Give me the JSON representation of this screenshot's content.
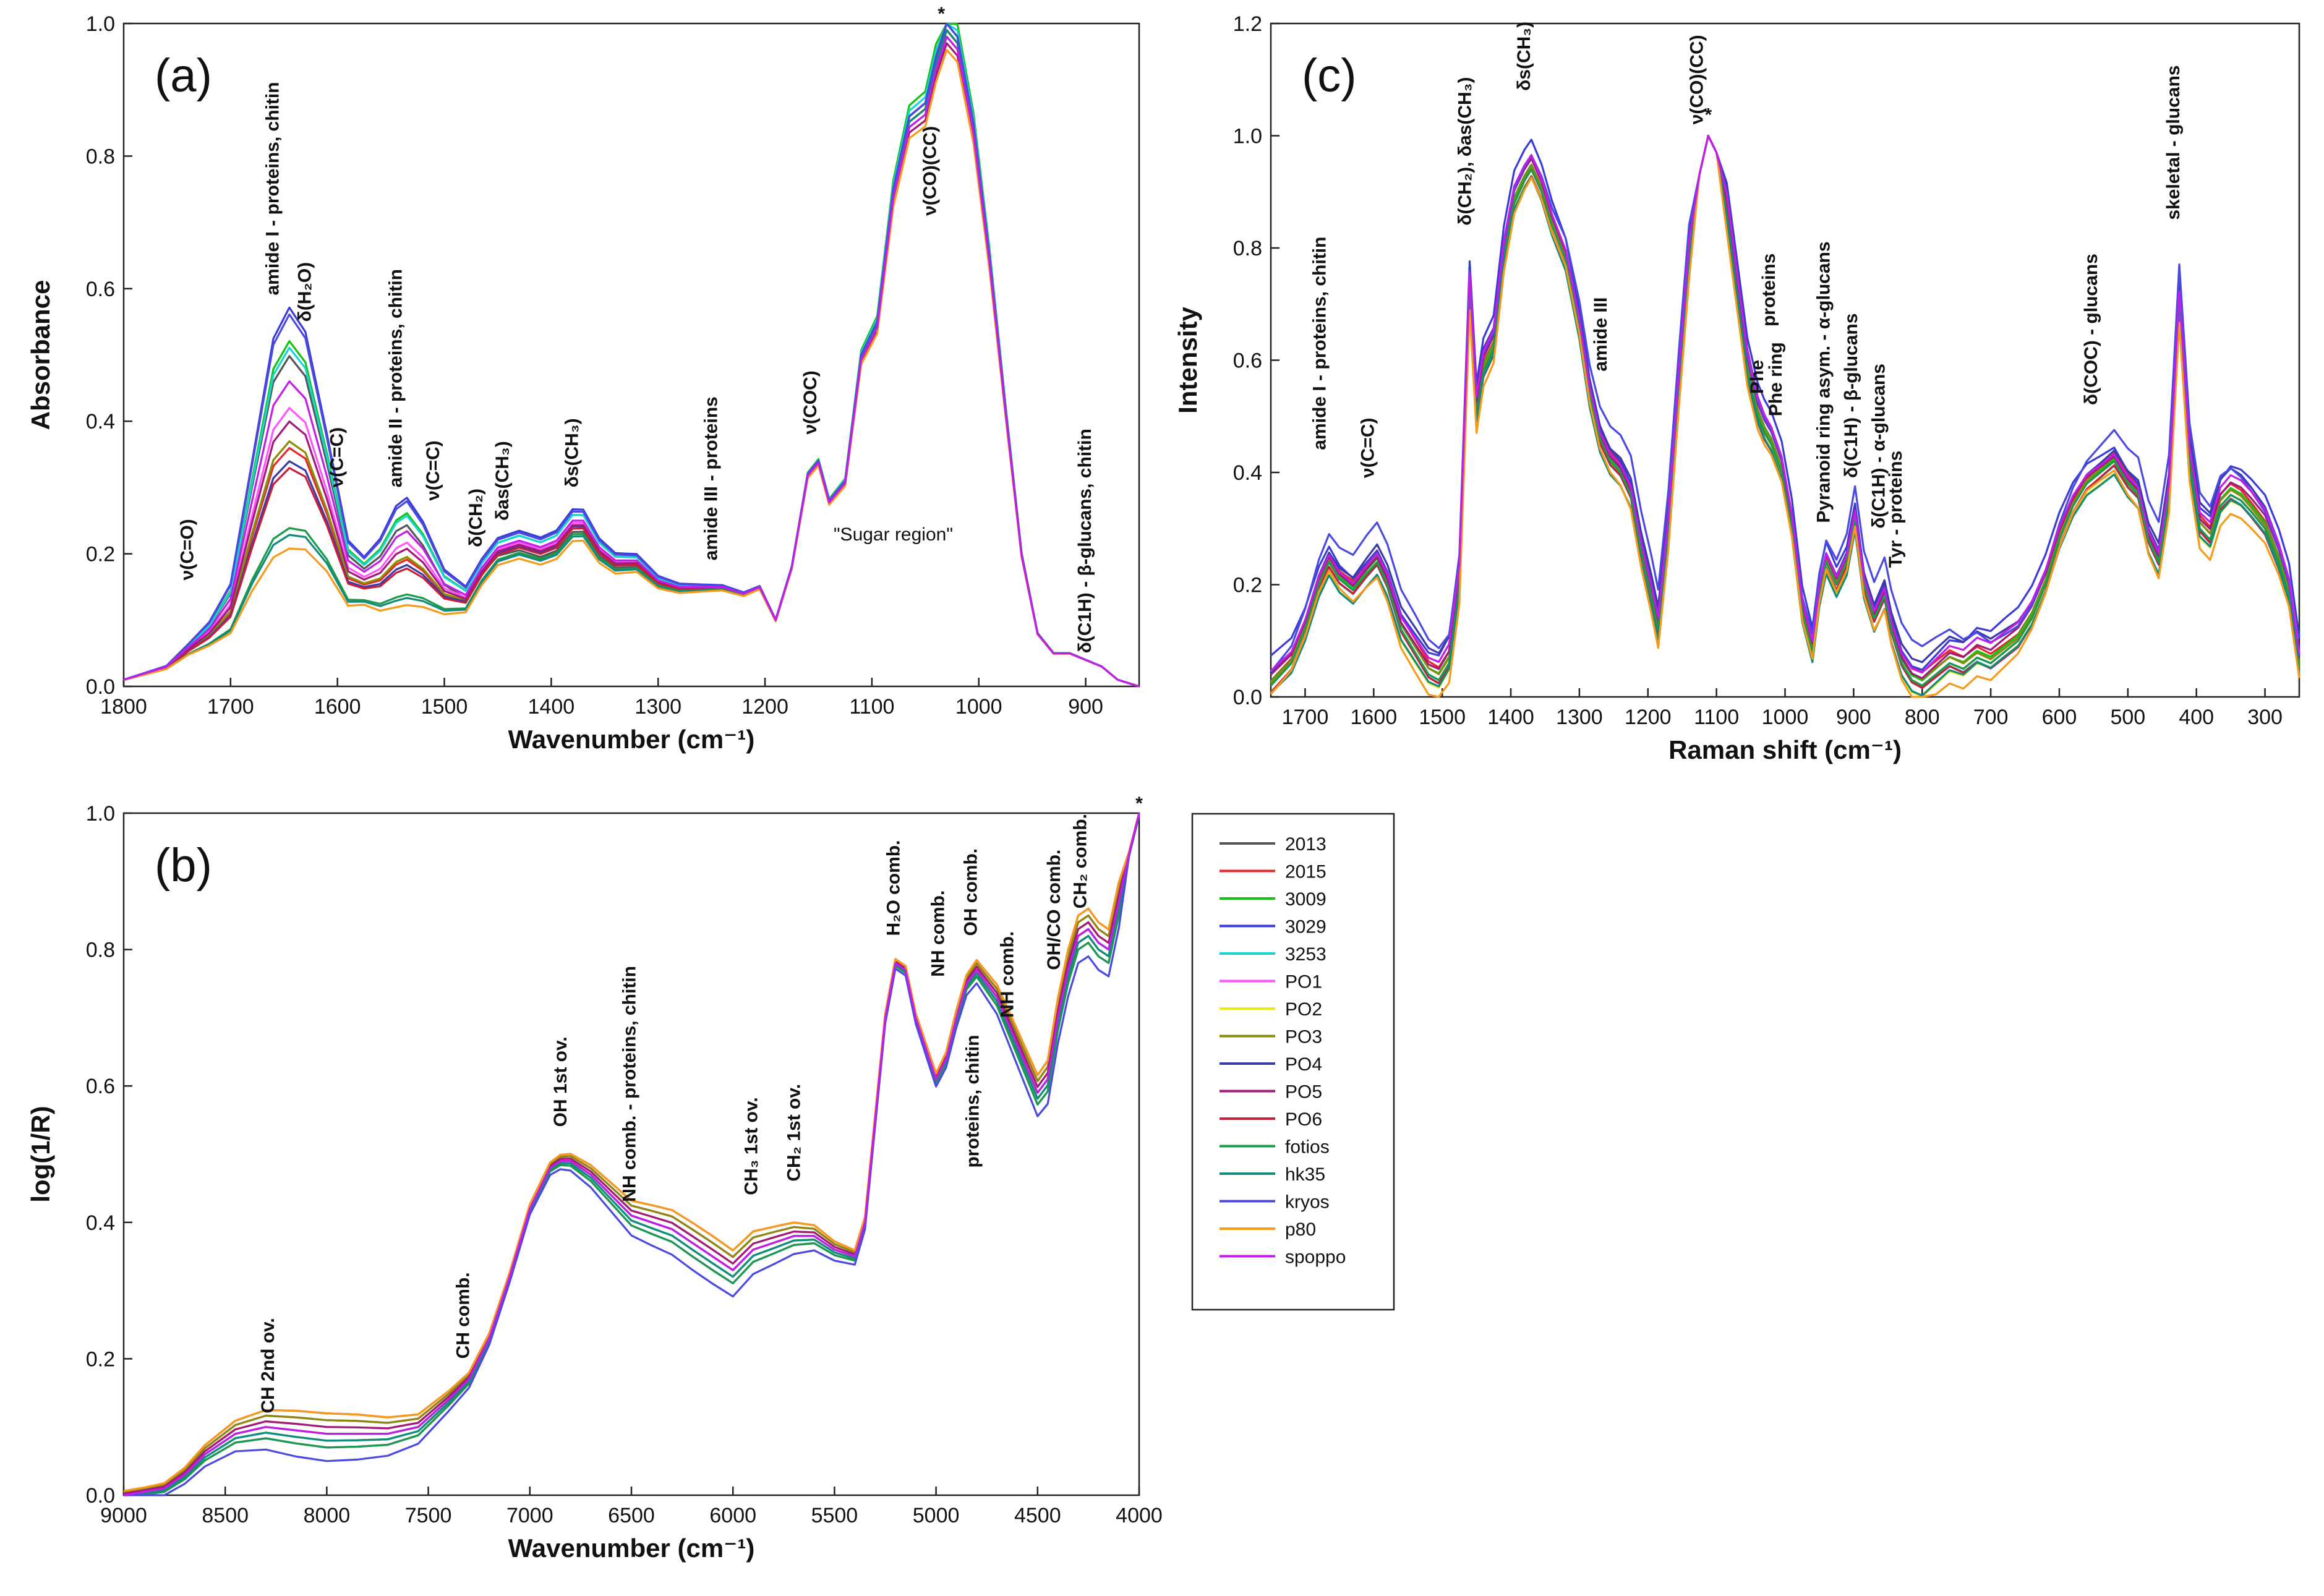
{
  "legend": {
    "items": [
      {
        "name": "2013",
        "color": "#555555"
      },
      {
        "name": "2015",
        "color": "#e8262b"
      },
      {
        "name": "3009",
        "color": "#11c411"
      },
      {
        "name": "3029",
        "color": "#3b3bd8"
      },
      {
        "name": "3253",
        "color": "#14d6d6"
      },
      {
        "name": "PO1",
        "color": "#ff55ff"
      },
      {
        "name": "PO2",
        "color": "#e8e81a"
      },
      {
        "name": "PO3",
        "color": "#8a8a10"
      },
      {
        "name": "PO4",
        "color": "#3a3aa8"
      },
      {
        "name": "PO5",
        "color": "#a01a7a"
      },
      {
        "name": "PO6",
        "color": "#c81e3c"
      },
      {
        "name": "fotios",
        "color": "#1a9a4a"
      },
      {
        "name": "hk35",
        "color": "#138a7a"
      },
      {
        "name": "kryos",
        "color": "#4a4ae0"
      },
      {
        "name": "p80",
        "color": "#f59a1a"
      },
      {
        "name": "spoppo",
        "color": "#c21ee8"
      }
    ]
  },
  "chart_data": [
    {
      "panel": "(a)",
      "type": "line",
      "xlabel": "Wavenumber (cm⁻¹)",
      "ylabel": "Absorbance",
      "xlim": [
        1800,
        850
      ],
      "ylim": [
        0,
        1.0
      ],
      "xticks": [
        "1800",
        "1700",
        "1600",
        "1500",
        "1400",
        "1300",
        "1200",
        "1100",
        "1000",
        "900"
      ],
      "yticks": [
        "0.0",
        "0.2",
        "0.4",
        "0.6",
        "0.8",
        "1.0"
      ],
      "annotations": [
        {
          "text": "ν(C=O)",
          "x": 1735,
          "y": 0.16
        },
        {
          "text": "amide I - proteins, chitin",
          "x": 1655,
          "y": 0.59
        },
        {
          "text": "δ(H₂O)",
          "x": 1625,
          "y": 0.55
        },
        {
          "text": "ν(C=C)",
          "x": 1595,
          "y": 0.3
        },
        {
          "text": "amide II - proteins, chitin",
          "x": 1540,
          "y": 0.3
        },
        {
          "text": "ν(C=C)",
          "x": 1505,
          "y": 0.28
        },
        {
          "text": "δ(CH₂)",
          "x": 1465,
          "y": 0.21
        },
        {
          "text": "δas(CH₃)",
          "x": 1440,
          "y": 0.25
        },
        {
          "text": "δs(CH₃)",
          "x": 1375,
          "y": 0.3
        },
        {
          "text": "amide III - proteins",
          "x": 1245,
          "y": 0.19
        },
        {
          "text": "ν(COC)",
          "x": 1152,
          "y": 0.38
        },
        {
          "text": "\"Sugar region\"",
          "x": 1080,
          "y": 0.22
        },
        {
          "text": "ν(CO)(CC)",
          "x": 1040,
          "y": 0.71
        },
        {
          "text": "*",
          "x": 1035,
          "y": 1.0
        },
        {
          "text": "δ(C1H) - β-glucans, chitin",
          "x": 895,
          "y": 0.05
        }
      ],
      "x": [
        1800,
        1760,
        1740,
        1720,
        1700,
        1680,
        1660,
        1645,
        1630,
        1610,
        1590,
        1575,
        1560,
        1545,
        1535,
        1520,
        1500,
        1480,
        1465,
        1450,
        1430,
        1410,
        1395,
        1380,
        1370,
        1355,
        1340,
        1320,
        1300,
        1280,
        1260,
        1240,
        1220,
        1205,
        1190,
        1175,
        1160,
        1150,
        1140,
        1125,
        1110,
        1095,
        1080,
        1065,
        1050,
        1040,
        1030,
        1020,
        1005,
        990,
        975,
        960,
        945,
        930,
        915,
        900,
        885,
        870,
        850
      ],
      "series": [
        {
          "name": "2013",
          "peak": 0.5,
          "mid": 0.9,
          "sugar": 1.0
        },
        {
          "name": "2015",
          "peak": 0.36,
          "mid": 0.95,
          "sugar": 0.99
        },
        {
          "name": "3009",
          "peak": 0.52,
          "mid": 1.05,
          "sugar": 1.02
        },
        {
          "name": "3029",
          "peak": 0.57,
          "mid": 1.1,
          "sugar": 1.0
        },
        {
          "name": "3253",
          "peak": 0.51,
          "mid": 1.05,
          "sugar": 1.01
        },
        {
          "name": "PO1",
          "peak": 0.42,
          "mid": 0.98,
          "sugar": 0.98
        },
        {
          "name": "PO2",
          "peak": 0.37,
          "mid": 0.96,
          "sugar": 1.0
        },
        {
          "name": "PO3",
          "peak": 0.37,
          "mid": 0.95,
          "sugar": 0.99
        },
        {
          "name": "PO4",
          "peak": 0.34,
          "mid": 0.95,
          "sugar": 1.0
        },
        {
          "name": "PO5",
          "peak": 0.4,
          "mid": 0.96,
          "sugar": 0.97
        },
        {
          "name": "PO6",
          "peak": 0.33,
          "mid": 0.93,
          "sugar": 0.99
        },
        {
          "name": "fotios",
          "peak": 0.24,
          "mid": 0.88,
          "sugar": 1.0
        },
        {
          "name": "hk35",
          "peak": 0.23,
          "mid": 0.86,
          "sugar": 0.99
        },
        {
          "name": "kryos",
          "peak": 0.56,
          "mid": 1.08,
          "sugar": 1.0
        },
        {
          "name": "p80",
          "peak": 0.21,
          "mid": 0.82,
          "sugar": 0.96
        },
        {
          "name": "spoppo",
          "peak": 0.46,
          "mid": 1.0,
          "sugar": 0.98
        }
      ],
      "base_shape": [
        0.01,
        0.03,
        0.06,
        0.09,
        0.14,
        0.3,
        0.46,
        0.5,
        0.47,
        0.34,
        0.2,
        0.18,
        0.2,
        0.24,
        0.25,
        0.22,
        0.16,
        0.14,
        0.18,
        0.21,
        0.22,
        0.21,
        0.22,
        0.25,
        0.25,
        0.21,
        0.19,
        0.19,
        0.16,
        0.15,
        0.15,
        0.15,
        0.14,
        0.15,
        0.1,
        0.18,
        0.32,
        0.34,
        0.28,
        0.31,
        0.5,
        0.55,
        0.75,
        0.86,
        0.88,
        0.95,
        1.0,
        0.98,
        0.85,
        0.65,
        0.42,
        0.2,
        0.08,
        0.05,
        0.05,
        0.04,
        0.03,
        0.01,
        0.0
      ]
    },
    {
      "panel": "(b)",
      "type": "line",
      "xlabel": "Wavenumber (cm⁻¹)",
      "ylabel": "log(1/R)",
      "xlim": [
        9000,
        4000
      ],
      "ylim": [
        0,
        1.0
      ],
      "xticks": [
        "9000",
        "8500",
        "8000",
        "7500",
        "7000",
        "6500",
        "6000",
        "5500",
        "5000",
        "4500",
        "4000"
      ],
      "yticks": [
        "0.0",
        "0.2",
        "0.4",
        "0.6",
        "0.8",
        "1.0"
      ],
      "annotations": [
        {
          "text": "CH 2nd ov.",
          "x": 8260,
          "y": 0.12
        },
        {
          "text": "CH comb.",
          "x": 7300,
          "y": 0.2
        },
        {
          "text": "OH 1st ov.",
          "x": 6820,
          "y": 0.54
        },
        {
          "text": "NH comb. - proteins, chitin",
          "x": 6480,
          "y": 0.43
        },
        {
          "text": "CH₃ 1st ov.",
          "x": 5880,
          "y": 0.44
        },
        {
          "text": "CH₂ 1st ov.",
          "x": 5670,
          "y": 0.46
        },
        {
          "text": "H₂O comb.",
          "x": 5180,
          "y": 0.82
        },
        {
          "text": "NH comb.",
          "x": 4960,
          "y": 0.76
        },
        {
          "text": "OH comb.",
          "x": 4800,
          "y": 0.82
        },
        {
          "text": "NH comb.",
          "x": 4620,
          "y": 0.7
        },
        {
          "text": "proteins, chitin",
          "x": 4790,
          "y": 0.48
        },
        {
          "text": "OH/CO comb.",
          "x": 4390,
          "y": 0.77
        },
        {
          "text": "CH₂ comb.",
          "x": 4260,
          "y": 0.86
        },
        {
          "text": "*",
          "x": 4000,
          "y": 1.0
        }
      ],
      "x": [
        9000,
        8900,
        8800,
        8700,
        8600,
        8450,
        8300,
        8150,
        8000,
        7850,
        7700,
        7550,
        7400,
        7300,
        7200,
        7100,
        7000,
        6900,
        6850,
        6800,
        6700,
        6600,
        6500,
        6400,
        6300,
        6200,
        6100,
        6000,
        5900,
        5800,
        5700,
        5600,
        5500,
        5400,
        5350,
        5300,
        5250,
        5200,
        5150,
        5100,
        5000,
        4950,
        4900,
        4850,
        4800,
        4700,
        4600,
        4500,
        4450,
        4400,
        4350,
        4300,
        4250,
        4200,
        4150,
        4100,
        4050,
        4000
      ],
      "series_offsets": [
        0.0,
        0.02,
        -0.01,
        -0.02,
        -0.01,
        0.01,
        0.01,
        0.02,
        0.0,
        0.01,
        0.03,
        -0.02,
        -0.01,
        -0.04,
        0.03,
        0.0
      ],
      "base_shape": [
        0.0,
        0.005,
        0.01,
        0.03,
        0.06,
        0.09,
        0.1,
        0.095,
        0.09,
        0.09,
        0.09,
        0.1,
        0.14,
        0.17,
        0.23,
        0.32,
        0.42,
        0.48,
        0.49,
        0.49,
        0.47,
        0.44,
        0.41,
        0.4,
        0.39,
        0.37,
        0.35,
        0.33,
        0.36,
        0.37,
        0.38,
        0.38,
        0.36,
        0.35,
        0.4,
        0.55,
        0.7,
        0.78,
        0.77,
        0.7,
        0.61,
        0.64,
        0.7,
        0.75,
        0.77,
        0.73,
        0.66,
        0.59,
        0.61,
        0.7,
        0.77,
        0.82,
        0.83,
        0.81,
        0.8,
        0.87,
        0.94,
        1.0
      ]
    },
    {
      "panel": "(c)",
      "type": "line",
      "xlabel": "Raman shift (cm⁻¹)",
      "ylabel": "Intensity",
      "xlim": [
        1750,
        250
      ],
      "ylim": [
        0,
        1.2
      ],
      "xticks": [
        "1700",
        "1600",
        "1500",
        "1400",
        "1300",
        "1200",
        "1100",
        "1000",
        "900",
        "800",
        "700",
        "600",
        "500",
        "400",
        "300"
      ],
      "yticks": [
        "0.0",
        "0.2",
        "0.4",
        "0.6",
        "0.8",
        "1.0",
        "1.2"
      ],
      "annotations": [
        {
          "text": "amide I - proteins, chitin",
          "x": 1670,
          "y": 0.44
        },
        {
          "text": "ν(C=C)",
          "x": 1600,
          "y": 0.39
        },
        {
          "text": "δ(CH₂), δas(CH₃)",
          "x": 1458,
          "y": 0.84
        },
        {
          "text": "δs(CH₃)",
          "x": 1372,
          "y": 1.08
        },
        {
          "text": "amide III",
          "x": 1260,
          "y": 0.58
        },
        {
          "text": "ν(CO)(CC)",
          "x": 1120,
          "y": 1.02
        },
        {
          "text": "*",
          "x": 1112,
          "y": 1.02
        },
        {
          "text": "Phe",
          "x": 1032,
          "y": 0.54
        },
        {
          "text": "Phe ring",
          "x": 1005,
          "y": 0.5
        },
        {
          "text": "proteins",
          "x": 1015,
          "y": 0.66
        },
        {
          "text": "Pyranoid ring asym. - α-glucans",
          "x": 935,
          "y": 0.31
        },
        {
          "text": "δ(C1H) - β-glucans",
          "x": 895,
          "y": 0.39
        },
        {
          "text": "δ(C1H) - α-glucans",
          "x": 855,
          "y": 0.3
        },
        {
          "text": "Tyr - proteins",
          "x": 830,
          "y": 0.23
        },
        {
          "text": "δ(COC) - glucans",
          "x": 545,
          "y": 0.52
        },
        {
          "text": "skeletal - glucans",
          "x": 425,
          "y": 0.85
        }
      ],
      "x": [
        1750,
        1720,
        1700,
        1680,
        1665,
        1650,
        1630,
        1610,
        1595,
        1580,
        1560,
        1540,
        1520,
        1505,
        1490,
        1475,
        1460,
        1450,
        1440,
        1425,
        1410,
        1395,
        1380,
        1370,
        1355,
        1340,
        1320,
        1300,
        1285,
        1270,
        1255,
        1240,
        1225,
        1210,
        1195,
        1185,
        1170,
        1155,
        1140,
        1125,
        1112,
        1100,
        1085,
        1070,
        1055,
        1040,
        1030,
        1020,
        1005,
        990,
        975,
        960,
        950,
        940,
        925,
        910,
        898,
        885,
        870,
        855,
        845,
        830,
        815,
        800,
        780,
        760,
        740,
        720,
        700,
        680,
        660,
        640,
        620,
        600,
        580,
        560,
        540,
        520,
        500,
        485,
        470,
        455,
        440,
        425,
        410,
        395,
        380,
        365,
        350,
        335,
        320,
        300,
        280,
        265,
        250
      ],
      "series_offsets": [
        0.0,
        0.02,
        0.01,
        0.05,
        -0.01,
        0.0,
        -0.02,
        0.01,
        0.04,
        0.02,
        -0.01,
        0.0,
        -0.02,
        0.06,
        -0.03,
        0.03
      ],
      "base_shape": [
        0.02,
        0.06,
        0.12,
        0.2,
        0.24,
        0.21,
        0.19,
        0.22,
        0.24,
        0.2,
        0.12,
        0.08,
        0.04,
        0.03,
        0.06,
        0.2,
        0.72,
        0.5,
        0.58,
        0.62,
        0.78,
        0.88,
        0.92,
        0.94,
        0.9,
        0.84,
        0.78,
        0.66,
        0.54,
        0.46,
        0.42,
        0.4,
        0.36,
        0.26,
        0.18,
        0.12,
        0.3,
        0.55,
        0.78,
        0.93,
        1.0,
        0.97,
        0.86,
        0.72,
        0.58,
        0.5,
        0.47,
        0.45,
        0.4,
        0.3,
        0.15,
        0.08,
        0.18,
        0.24,
        0.2,
        0.24,
        0.32,
        0.2,
        0.14,
        0.18,
        0.12,
        0.06,
        0.03,
        0.02,
        0.04,
        0.06,
        0.05,
        0.07,
        0.06,
        0.08,
        0.1,
        0.14,
        0.2,
        0.28,
        0.34,
        0.38,
        0.4,
        0.42,
        0.38,
        0.36,
        0.28,
        0.24,
        0.36,
        0.7,
        0.42,
        0.3,
        0.28,
        0.34,
        0.36,
        0.35,
        0.33,
        0.3,
        0.24,
        0.18,
        0.05
      ]
    }
  ]
}
